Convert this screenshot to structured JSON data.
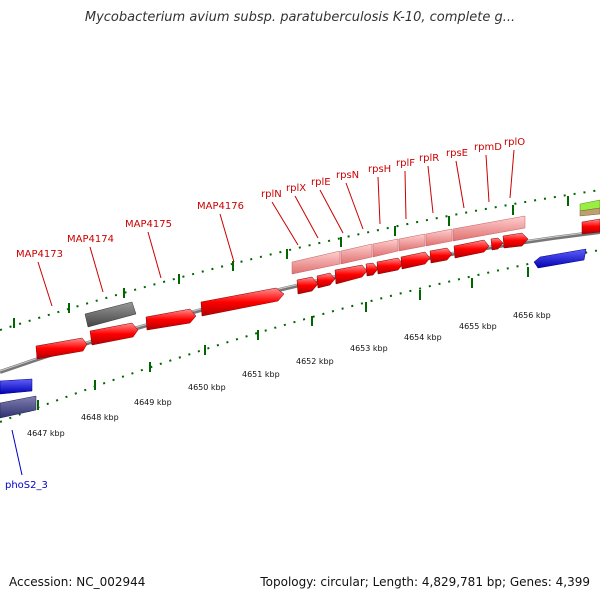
{
  "title": "Mycobacterium avium subsp. paratuberculosis K-10, complete g...",
  "footer": {
    "accession": "Accession: NC_002944",
    "summary": "Topology: circular; Length: 4,829,781 bp; Genes: 4,399"
  },
  "colors": {
    "cds": "#ff0000",
    "cds_light": "#f08080",
    "hypothetical": "#666666",
    "other_strand": "#0000ee",
    "other_strand_dark": "#404080",
    "tick": "#006600",
    "backbone": "#888888",
    "label_red": "#cc0000",
    "label_blue": "#0000cc"
  },
  "scale": {
    "ticks": [
      "4647 kbp",
      "4648 kbp",
      "4649 kbp",
      "4650 kbp",
      "4651 kbp",
      "4652 kbp",
      "4653 kbp",
      "4654 kbp",
      "4655 kbp",
      "4656 kbp"
    ]
  },
  "genes": {
    "red_labels": [
      "MAP4173",
      "MAP4174",
      "MAP4175",
      "MAP4176",
      "rplN",
      "rplX",
      "rplE",
      "rpsN",
      "rpsH",
      "rplF",
      "rplR",
      "rpsE",
      "rpmD",
      "rplO"
    ],
    "blue_labels": [
      "phoS2_3"
    ]
  }
}
